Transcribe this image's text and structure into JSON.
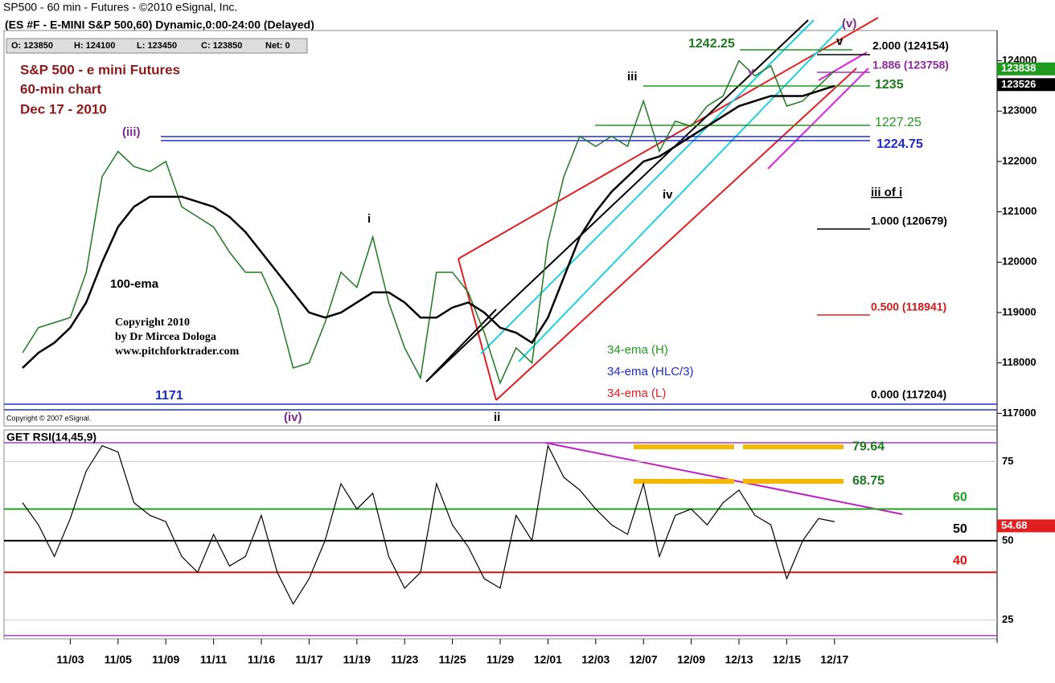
{
  "header": {
    "title": "SP500 - 60 min - Futures - ©2010 eSignal, Inc.",
    "subtitle": "(ES #F - E-MINI S&P 500,60) Dynamic,0:00-24:00 (Delayed)",
    "ohlc": [
      "O: 123850",
      "H: 124100",
      "L: 123450",
      "C: 123850",
      "Net: 0"
    ]
  },
  "chart_data": [
    {
      "type": "line",
      "categories": [
        null,
        null,
        null,
        "11/03",
        null,
        null,
        "11/05",
        null,
        null,
        "11/09",
        null,
        null,
        "11/11",
        null,
        null,
        "11/16",
        null,
        null,
        "11/17",
        null,
        null,
        "11/19",
        null,
        null,
        "11/23",
        null,
        null,
        "11/25",
        null,
        null,
        "11/29",
        null,
        null,
        "12/01",
        null,
        null,
        "12/03",
        null,
        null,
        "12/07",
        null,
        null,
        "12/09",
        null,
        null,
        "12/13",
        null,
        null,
        "12/15",
        null,
        null,
        "12/17"
      ],
      "series": [
        {
          "color": "#1f7a1f",
          "values": [
            118200,
            118700,
            118800,
            118900,
            119800,
            121700,
            122200,
            121900,
            121800,
            122000,
            121100,
            120900,
            120700,
            120200,
            119800,
            119800,
            119100,
            117900,
            118000,
            118800,
            119800,
            119500,
            120500,
            119200,
            118300,
            117700,
            119800,
            119800,
            119400,
            118600,
            117600,
            118300,
            118000,
            120400,
            121700,
            122500,
            122300,
            122500,
            122300,
            123200,
            122200,
            122800,
            122700,
            123100,
            123300,
            124000,
            123700,
            123900,
            123100,
            123200,
            123500,
            123800
          ]
        },
        {
          "name": "100-ema",
          "color": "#000000",
          "values": [
            117900,
            118200,
            118400,
            118700,
            119200,
            120000,
            120700,
            121100,
            121300,
            121300,
            121300,
            121200,
            121100,
            120900,
            120600,
            120200,
            119800,
            119400,
            119000,
            118900,
            119000,
            119200,
            119400,
            119400,
            119200,
            118900,
            118900,
            119100,
            119200,
            119000,
            118700,
            118600,
            118400,
            118900,
            119700,
            120500,
            121000,
            121400,
            121700,
            122000,
            122100,
            122300,
            122500,
            122700,
            122900,
            123100,
            123200,
            123300,
            123300,
            123300,
            123400,
            123500
          ]
        }
      ],
      "ylim": [
        116750,
        124600
      ],
      "yticks": [
        117000,
        118000,
        119000,
        120000,
        121000,
        122000,
        123000,
        124000
      ],
      "price_markers": [
        {
          "value": 123838,
          "color": "#1f9a1f"
        },
        {
          "value": 123526,
          "color": "#000000"
        }
      ],
      "annotations": [
        {
          "text": "S&P 500 - e mini Futures",
          "color": "#8b1a1a"
        },
        {
          "text": "60-min chart",
          "color": "#8b1a1a"
        },
        {
          "text": "Dec 17  - 2010",
          "color": "#8b1a1a"
        },
        {
          "text": "(iii)",
          "color": "#7b2a8b"
        },
        {
          "text": "100-ema",
          "color": "#000000"
        },
        {
          "text": "Copyright 2010",
          "color": "#000000"
        },
        {
          "text": "by Dr Mircea Dologa",
          "color": "#000000"
        },
        {
          "text": "www.pitchforktrader.com",
          "color": "#000000"
        },
        {
          "text": "1171",
          "color": "#1a2ad0"
        },
        {
          "text": "(iv)",
          "color": "#7b2a8b"
        },
        {
          "text": "i",
          "color": "#000000"
        },
        {
          "text": "ii",
          "color": "#000000"
        },
        {
          "text": "iii",
          "color": "#000000"
        },
        {
          "text": "iv",
          "color": "#000000"
        },
        {
          "text": "v",
          "color": "#9b3aab"
        },
        {
          "text": "v",
          "color": "#000000"
        },
        {
          "text": "(v)",
          "color": "#7b2a8b"
        },
        {
          "text": "1242.25",
          "color": "#1f7a1f"
        },
        {
          "text": "2.000 (124154)",
          "color": "#000000"
        },
        {
          "text": "1.886 (123758)",
          "color": "#8b2a9b"
        },
        {
          "text": "1235",
          "color": "#1f7a1f"
        },
        {
          "text": "1227.25",
          "color": "#1f9a1f"
        },
        {
          "text": "1224.75",
          "color": "#1a2ad0"
        },
        {
          "text": "iii of i",
          "color": "#000000"
        },
        {
          "text": "1.000 (120679)",
          "color": "#000000"
        },
        {
          "text": "0.500 (118941)",
          "color": "#d01a1a"
        },
        {
          "text": "0.000 (117204)",
          "color": "#000000"
        },
        {
          "text": "34-ema (H)",
          "color": "#1f9a1f"
        },
        {
          "text": "34-ema (HLC/3)",
          "color": "#1a2ad0"
        },
        {
          "text": "34-ema (L)",
          "color": "#e02020"
        },
        {
          "text": "Copyright © 2007 eSignal.",
          "color": "#000000"
        }
      ]
    },
    {
      "type": "line",
      "title": "GET RSI(14,45,9)",
      "series": [
        {
          "color": "#000000",
          "values": [
            62,
            55,
            45,
            57,
            72,
            80,
            78,
            62,
            58,
            56,
            45,
            40,
            52,
            42,
            45,
            58,
            40,
            30,
            38,
            50,
            68,
            60,
            65,
            45,
            35,
            40,
            68,
            55,
            48,
            38,
            35,
            58,
            50,
            80,
            70,
            66,
            60,
            55,
            52,
            68,
            45,
            58,
            60,
            55,
            62,
            66,
            58,
            55,
            38,
            50,
            57,
            56
          ]
        }
      ],
      "ylim": [
        19,
        85
      ],
      "yticks": [
        25,
        50,
        75
      ],
      "levels": [
        {
          "value": 60,
          "color": "#1fa01f"
        },
        {
          "value": 50,
          "color": "#000000"
        },
        {
          "value": 40,
          "color": "#e01010"
        }
      ],
      "bands": [
        {
          "value": 79.64,
          "color": "#1f7a1f"
        },
        {
          "value": 68.75,
          "color": "#1f7a1f"
        }
      ],
      "last_value": 54.68
    }
  ]
}
